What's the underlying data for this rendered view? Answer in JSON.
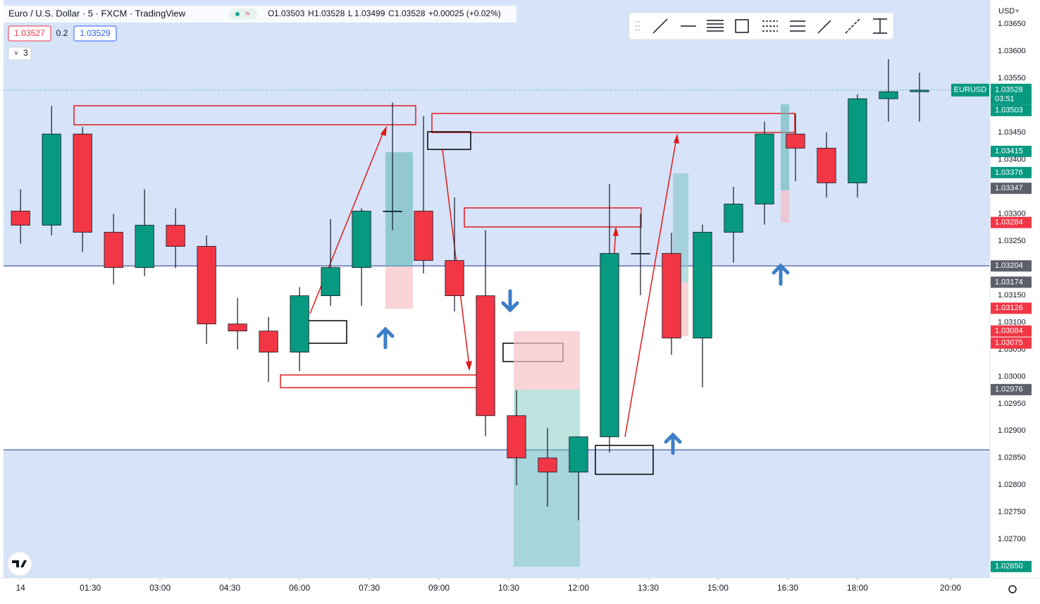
{
  "header": {
    "title": "Euro / U.S. Dollar · 5 · FXCM · TradingView",
    "ohlc": [
      {
        "label": "O",
        "value": 1.03503
      },
      {
        "label": "H",
        "value": 1.03528
      },
      {
        "label": "L",
        "value": 1.03499
      },
      {
        "label": "C",
        "value": 1.03528
      }
    ],
    "change": "+0.00025 (+0.02%)",
    "bid": 1.03527,
    "spread": 0.2,
    "ask": 1.03529,
    "indicators": 3
  },
  "chart_data": {
    "type": "candlestick",
    "symbol": "EURUSD",
    "currency": "USD",
    "up_color": "#089981",
    "down_color": "#f23645",
    "x": [
      0,
      40,
      80,
      120,
      160,
      200,
      240,
      280,
      320,
      360,
      400,
      440,
      480,
      520,
      560,
      600,
      640,
      680,
      720,
      760,
      800,
      840,
      880,
      920,
      960,
      1000,
      1040,
      1080,
      1120,
      1160
    ],
    "open": [
      1.03305,
      1.03279,
      1.03447,
      1.03266,
      1.03201,
      1.03279,
      1.0324,
      1.03097,
      1.03084,
      1.03045,
      1.03149,
      1.03201,
      1.03305,
      1.03305,
      1.03214,
      1.03149,
      1.02928,
      1.0285,
      1.02824,
      1.02889,
      1.03227,
      1.03227,
      1.03071,
      1.03266,
      1.03318,
      1.03447,
      1.03421,
      1.03357,
      1.03512,
      1.03525
    ],
    "high": [
      1.03345,
      1.03499,
      1.0346,
      1.033,
      1.03345,
      1.0331,
      1.0326,
      1.03145,
      1.0311,
      1.03165,
      1.0329,
      1.0331,
      1.03505,
      1.0348,
      1.0333,
      1.0327,
      1.02975,
      1.02905,
      1.0289,
      1.03355,
      1.033,
      1.03265,
      1.0328,
      1.0335,
      1.0347,
      1.03485,
      1.0345,
      1.0352,
      1.03585,
      1.0356
    ],
    "low": [
      1.03245,
      1.0326,
      1.0323,
      1.0317,
      1.03185,
      1.032,
      1.0306,
      1.0305,
      1.0299,
      1.0301,
      1.0313,
      1.0313,
      1.0327,
      1.0319,
      1.0312,
      1.0289,
      1.028,
      1.0276,
      1.02735,
      1.0286,
      1.0315,
      1.0304,
      1.0298,
      1.0321,
      1.0328,
      1.0336,
      1.0333,
      1.0333,
      1.0347,
      1.0347
    ],
    "close": [
      1.03279,
      1.03447,
      1.03266,
      1.03201,
      1.03279,
      1.0324,
      1.03097,
      1.03084,
      1.03045,
      1.03149,
      1.03201,
      1.03305,
      1.03305,
      1.03214,
      1.03149,
      1.02928,
      1.0285,
      1.02824,
      1.02889,
      1.03227,
      1.03227,
      1.03071,
      1.03266,
      1.03318,
      1.03447,
      1.03421,
      1.03357,
      1.03512,
      1.03525,
      1.03528
    ],
    "xlim": [
      -22,
      1251
    ],
    "xticks": [
      {
        "value": 0,
        "label": "14"
      },
      {
        "value": 90,
        "label": "01:30"
      },
      {
        "value": 180,
        "label": "03:00"
      },
      {
        "value": 270,
        "label": "04:30"
      },
      {
        "value": 360,
        "label": "06:00"
      },
      {
        "value": 450,
        "label": "07:30"
      },
      {
        "value": 540,
        "label": "09:00"
      },
      {
        "value": 630,
        "label": "10:30"
      },
      {
        "value": 720,
        "label": "12:00"
      },
      {
        "value": 810,
        "label": "13:30"
      },
      {
        "value": 900,
        "label": "15:00"
      },
      {
        "value": 990,
        "label": "16:30"
      },
      {
        "value": 1080,
        "label": "18:00"
      },
      {
        "value": 1200,
        "label": "20:00"
      }
    ],
    "ylim": [
      1.02629,
      1.03694
    ],
    "yticks": [
      {
        "value": 1.0365,
        "label": "1.03650"
      },
      {
        "value": 1.036,
        "label": "1.03600"
      },
      {
        "value": 1.0355,
        "label": "1.03550"
      },
      {
        "value": 1.035,
        "label": "1.03500"
      },
      {
        "value": 1.0345,
        "label": "1.03450"
      },
      {
        "value": 1.034,
        "label": "1.03400"
      },
      {
        "value": 1.0335,
        "label": "1.03350"
      },
      {
        "value": 1.033,
        "label": "1.03300"
      },
      {
        "value": 1.0325,
        "label": "1.03250"
      },
      {
        "value": 1.032,
        "label": "1.03200"
      },
      {
        "value": 1.0315,
        "label": "1.03150"
      },
      {
        "value": 1.031,
        "label": "1.03100"
      },
      {
        "value": 1.0305,
        "label": "1.03050"
      },
      {
        "value": 1.03,
        "label": "1.03000"
      },
      {
        "value": 1.0295,
        "label": "1.02950"
      },
      {
        "value": 1.029,
        "label": "1.02900"
      },
      {
        "value": 1.0285,
        "label": "1.02850"
      },
      {
        "value": 1.028,
        "label": "1.02800"
      },
      {
        "value": 1.0275,
        "label": "1.02750"
      },
      {
        "value": 1.027,
        "label": "1.02700"
      },
      {
        "value": 1.0265,
        "label": "1.02650"
      }
    ],
    "last_price": 1.03528,
    "countdown": "03:51",
    "price_tags": [
      {
        "value": 1.03503,
        "color": "#089981"
      },
      {
        "value": 1.03415,
        "color": "#089981"
      },
      {
        "value": 1.03376,
        "color": "#089981"
      },
      {
        "value": 1.03347,
        "color": "#5d606b"
      },
      {
        "value": 1.03284,
        "color": "#f23645"
      },
      {
        "value": 1.03204,
        "color": "#5d606b"
      },
      {
        "value": 1.03174,
        "color": "#5d606b"
      },
      {
        "value": 1.03126,
        "color": "#f23645"
      },
      {
        "value": 1.03084,
        "color": "#f23645"
      },
      {
        "value": 1.03075,
        "color": "#f23645"
      },
      {
        "value": 1.02976,
        "color": "#5d606b"
      },
      {
        "value": {
          "value": 1.0265,
          "label": "1.02650"
        },
        "color": "#089981"
      }
    ],
    "hlines": [
      1.03204,
      1.02865
    ]
  }
}
